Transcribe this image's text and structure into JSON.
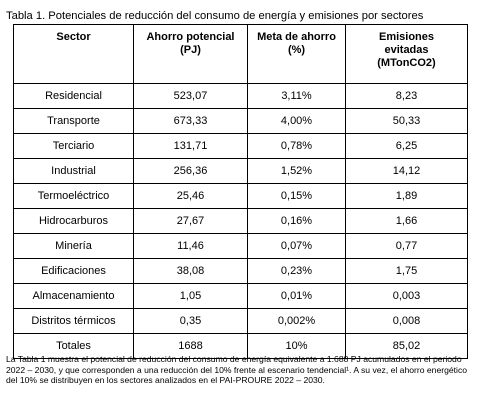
{
  "title": "Tabla 1. Potenciales de reducción del consumo de energía y emisiones por sectores",
  "table": {
    "header": [
      "Sector",
      "Ahorro potencial (PJ)",
      "Meta de ahorro (%)",
      "Emisiones evitadas (MTonCO2)"
    ],
    "rows": [
      [
        "Residencial",
        "523,07",
        "3,11%",
        "8,23"
      ],
      [
        "Transporte",
        "673,33",
        "4,00%",
        "50,33"
      ],
      [
        "Terciario",
        "131,71",
        "0,78%",
        "6,25"
      ],
      [
        "Industrial",
        "256,36",
        "1,52%",
        "14,12"
      ],
      [
        "Termoeléctrico",
        "25,46",
        "0,15%",
        "1,89"
      ],
      [
        "Hidrocarburos",
        "27,67",
        "0,16%",
        "1,66"
      ],
      [
        "Minería",
        "11,46",
        "0,07%",
        "0,77"
      ],
      [
        "Edificaciones",
        "38,08",
        "0,23%",
        "1,75"
      ],
      [
        "Almacenamiento",
        "1,05",
        "0,01%",
        "0,003"
      ],
      [
        "Distritos térmicos",
        "0,35",
        "0,002%",
        "0,008"
      ],
      [
        "Totales",
        "1688",
        "10%",
        "85,02"
      ]
    ]
  },
  "paragraph": "La Tabla 1 muestra el potencial de reducción del consumo de energía equivalente a 1.688 PJ acumulados en el periodo 2022 – 2030, y que corresponden a una reducción del 10% frente al escenario tendencial¹. A su vez, el ahorro energético del 10% se distribuyen en los sectores analizados en el PAI-PROURE 2022 – 2030."
}
